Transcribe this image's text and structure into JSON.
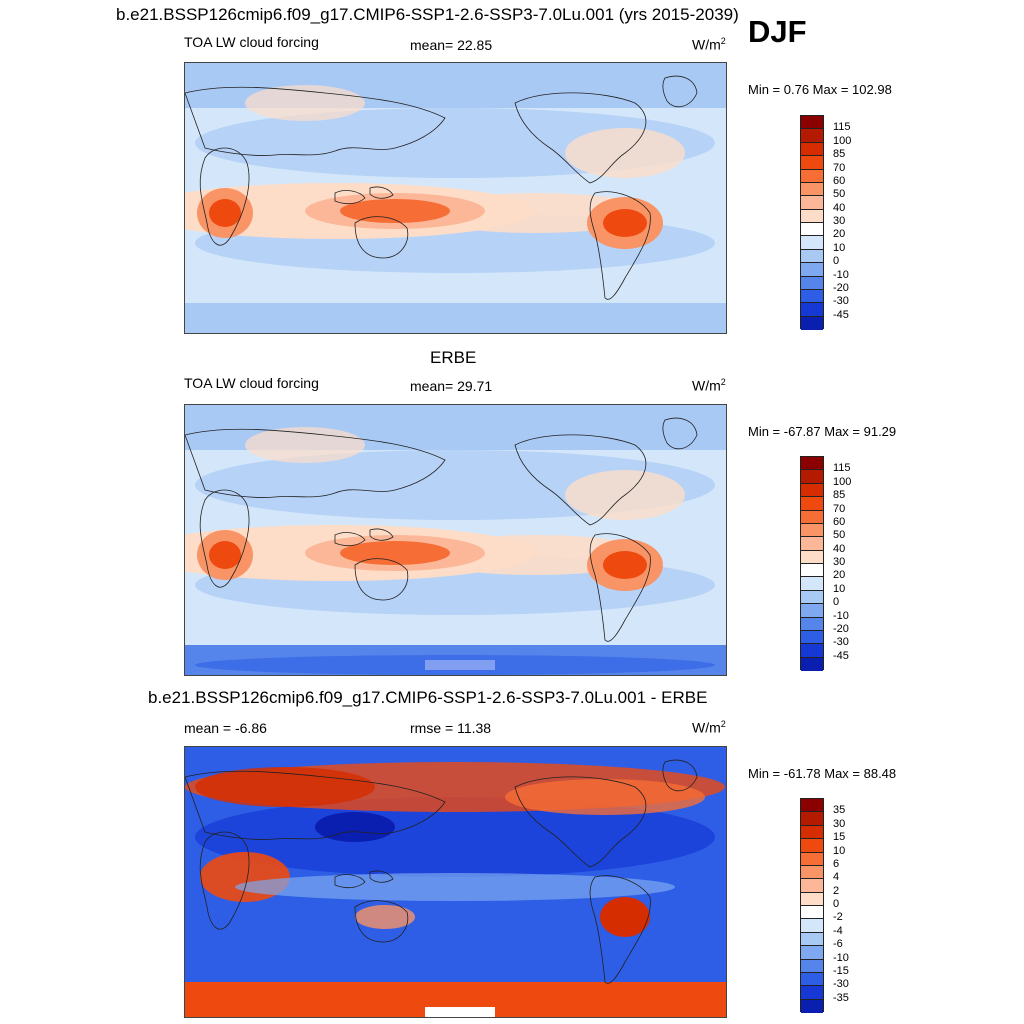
{
  "title": "b.e21.BSSP126cmip6.f09_g17.CMIP6-SSP1-2.6-SSP3-7.0Lu.001 (yrs 2015-2039)",
  "season": "DJF",
  "panels": [
    {
      "field": "TOA LW cloud forcing",
      "stat": "mean=  22.85",
      "units_base": "W/m",
      "units_exp": "2",
      "minmax": "Min =   0.76 Max = 102.98"
    },
    {
      "heading": "ERBE",
      "field": "TOA LW cloud forcing",
      "stat": "mean=  29.71",
      "units_base": "W/m",
      "units_exp": "2",
      "minmax": "Min = -67.87 Max =  91.29"
    },
    {
      "heading": "b.e21.BSSP126cmip6.f09_g17.CMIP6-SSP1-2.6-SSP3-7.0Lu.001 - ERBE",
      "mean": "mean =  -6.86",
      "rmse": "rmse =  11.38",
      "units_base": "W/m",
      "units_exp": "2",
      "minmax": "Min = -61.78 Max =  88.48"
    }
  ],
  "colorbars": {
    "abs_levels": [
      "115",
      "100",
      "85",
      "70",
      "60",
      "50",
      "40",
      "30",
      "20",
      "10",
      "0",
      "-10",
      "-20",
      "-30",
      "-45"
    ],
    "diff_levels": [
      "35",
      "30",
      "15",
      "10",
      "6",
      "4",
      "2",
      "0",
      "-2",
      "-4",
      "-6",
      "-10",
      "-15",
      "-30",
      "-35"
    ],
    "colors": [
      "#8b0000",
      "#b31a00",
      "#d62d00",
      "#ee4a10",
      "#f66d35",
      "#f89466",
      "#fbb797",
      "#fdddc8",
      "#ffffff",
      "#d4e7fa",
      "#a9c9f5",
      "#7ea8ef",
      "#5585ea",
      "#2e5ee6",
      "#1639d6",
      "#0a1fb0"
    ]
  },
  "chart_data": [
    {
      "type": "heatmap",
      "title": "TOA LW cloud forcing",
      "units": "W/m2",
      "mean": 22.85,
      "min": 0.76,
      "max": 102.98,
      "levels": [
        -45,
        -30,
        -20,
        -10,
        0,
        10,
        20,
        30,
        40,
        50,
        60,
        70,
        85,
        100,
        115
      ]
    },
    {
      "type": "heatmap",
      "title": "ERBE",
      "units": "W/m2",
      "mean": 29.71,
      "min": -67.87,
      "max": 91.29,
      "levels": [
        -45,
        -30,
        -20,
        -10,
        0,
        10,
        20,
        30,
        40,
        50,
        60,
        70,
        85,
        100,
        115
      ]
    },
    {
      "type": "heatmap",
      "title": "b.e21.BSSP126cmip6.f09_g17.CMIP6-SSP1-2.6-SSP3-7.0Lu.001 - ERBE",
      "units": "W/m2",
      "mean": -6.86,
      "rmse": 11.38,
      "min": -61.78,
      "max": 88.48,
      "levels": [
        -35,
        -30,
        -15,
        -10,
        -6,
        -4,
        -2,
        0,
        2,
        4,
        6,
        10,
        15,
        30,
        35
      ]
    }
  ]
}
